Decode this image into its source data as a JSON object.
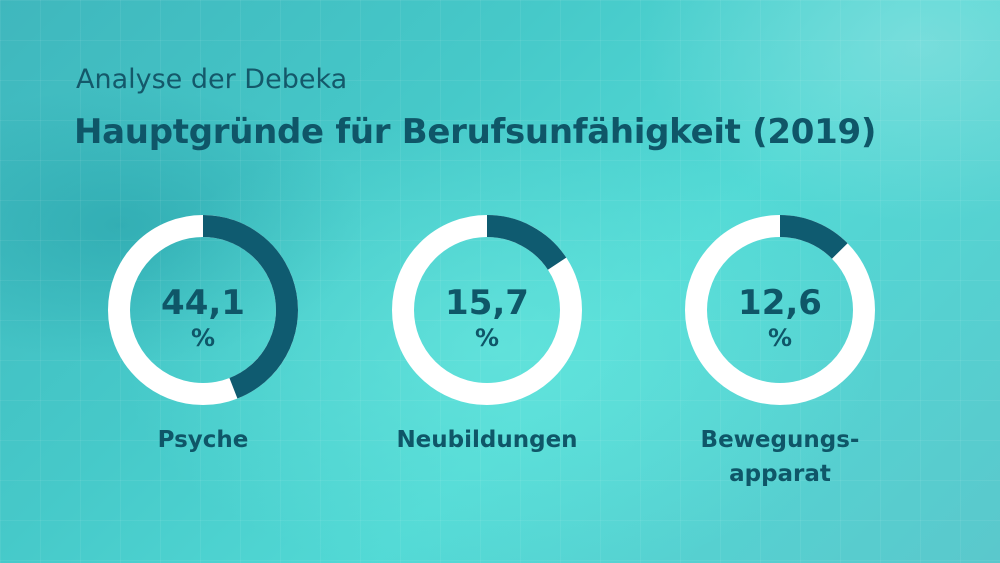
{
  "header": {
    "subtitle": "Analyse der Debeka",
    "title": "Hauptgründe für Berufsunfähigkeit (2019)"
  },
  "colors": {
    "ring_track": "#ffffff",
    "ring_fill": "#0f5b70",
    "text": "#0f5668"
  },
  "chart_data": {
    "type": "pie",
    "title": "Hauptgründe für Berufsunfähigkeit (2019)",
    "subtitle": "Analyse der Debeka",
    "unit": "%",
    "items": [
      {
        "value": 44.1,
        "value_label": "44,1",
        "unit": "%",
        "category_lines": [
          "Psyche"
        ]
      },
      {
        "value": 15.7,
        "value_label": "15,7",
        "unit": "%",
        "category_lines": [
          "Neubildungen"
        ]
      },
      {
        "value": 12.6,
        "value_label": "12,6",
        "unit": "%",
        "category_lines": [
          "Bewegungs-",
          "apparat"
        ]
      }
    ]
  }
}
